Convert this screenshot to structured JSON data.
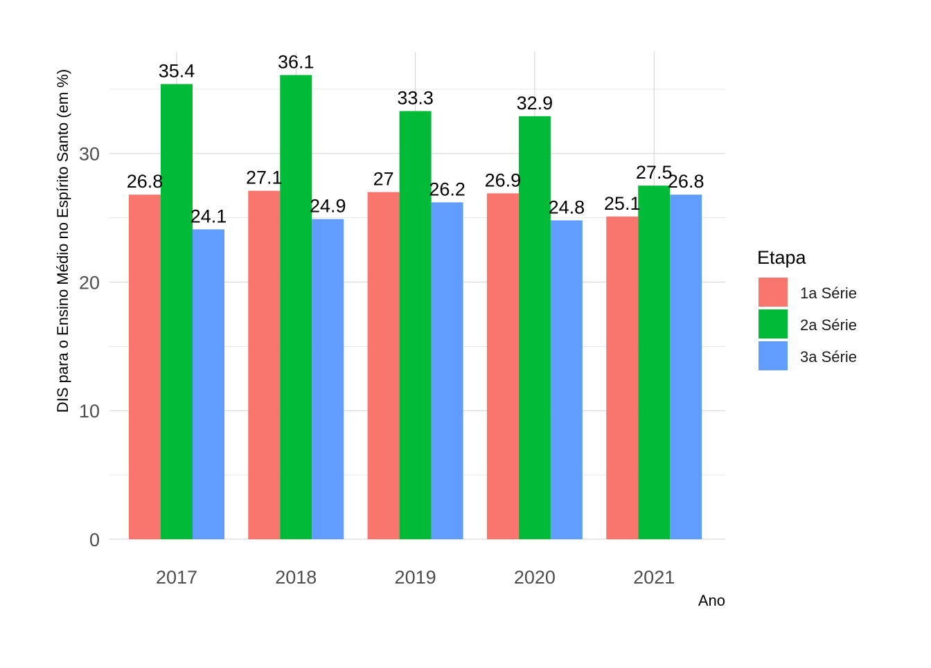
{
  "chart_data": {
    "type": "bar",
    "categories": [
      "2017",
      "2018",
      "2019",
      "2020",
      "2021"
    ],
    "series": [
      {
        "name": "1a Série",
        "values": [
          26.8,
          27.1,
          27,
          26.9,
          25.1
        ],
        "labels": [
          "26.8",
          "27.1",
          "27",
          "26.9",
          "25.1"
        ],
        "color": "#F8766D"
      },
      {
        "name": "2a Série",
        "values": [
          35.4,
          36.1,
          33.3,
          32.9,
          27.5
        ],
        "labels": [
          "35.4",
          "36.1",
          "33.3",
          "32.9",
          "27.5"
        ],
        "color": "#00BA38"
      },
      {
        "name": "3a Série",
        "values": [
          24.1,
          24.9,
          26.2,
          24.8,
          26.8
        ],
        "labels": [
          "24.1",
          "24.9",
          "26.2",
          "24.8",
          "26.8"
        ],
        "color": "#619CFF"
      }
    ],
    "xlabel": "Ano",
    "ylabel": "DIS para o Ensino Médio no Espírito Santo (em %)",
    "ylim": [
      0,
      37.9
    ],
    "yticks": [
      0,
      10,
      20,
      30
    ],
    "ytick_labels": [
      "0",
      "10",
      "20",
      "30"
    ],
    "grid": true,
    "legend": {
      "title": "Etapa",
      "position": "right"
    }
  }
}
